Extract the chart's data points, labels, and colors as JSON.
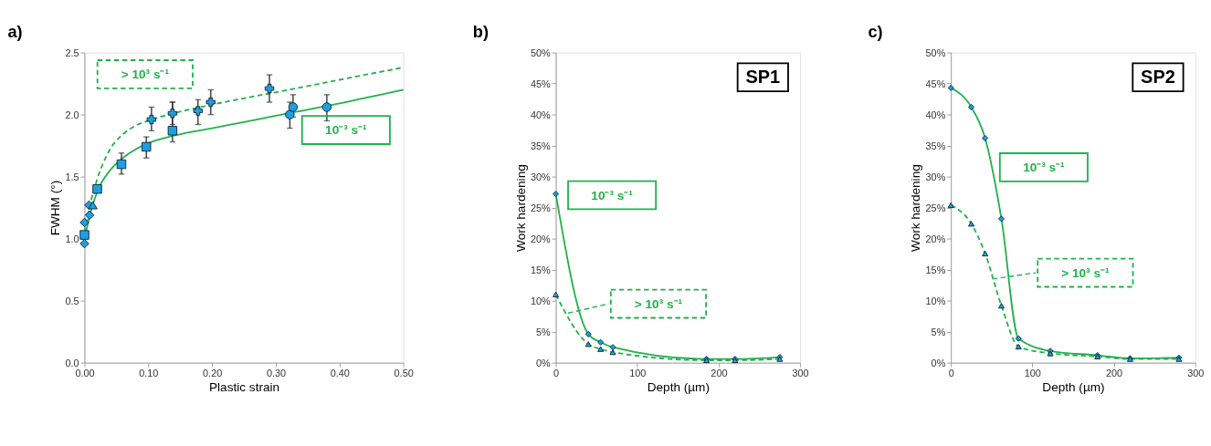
{
  "chart_data": [
    {
      "type": "scatter",
      "title": "a)",
      "xlabel": "Plastic strain",
      "ylabel": "FWHM (°)",
      "xlim": [
        0,
        0.5
      ],
      "ylim": [
        0,
        2.5
      ],
      "xticks": [
        {
          "value": 0,
          "label": "0.00"
        },
        {
          "value": 0.1,
          "label": "0.10"
        },
        {
          "value": 0.2,
          "label": "0.20"
        },
        {
          "value": 0.3,
          "label": "0.30"
        },
        {
          "value": 0.4,
          "label": "0.40"
        },
        {
          "value": 0.5,
          "label": "0.50"
        }
      ],
      "yticks": [
        {
          "value": 0,
          "label": "0.0"
        },
        0.5,
        {
          "value": 1,
          "label": "1.0"
        },
        1.5,
        {
          "value": 2,
          "label": "2.0"
        },
        2.5
      ],
      "grid": false,
      "series": [
        {
          "name": "10⁻³ s⁻¹",
          "type": "line",
          "line_style": "solid",
          "marker": "none",
          "color": "#22b14c",
          "x": [
            0,
            0.01,
            0.02,
            0.04,
            0.06,
            0.08,
            0.1,
            0.14,
            0.2,
            0.3,
            0.4,
            0.5
          ],
          "values": [
            1.0,
            1.22,
            1.38,
            1.55,
            1.65,
            1.72,
            1.77,
            1.83,
            1.89,
            1.99,
            2.09,
            2.2
          ]
        },
        {
          "name": "> 10³ s⁻¹",
          "type": "line",
          "line_style": "dashed",
          "marker": "none",
          "color": "#22b14c",
          "x": [
            0,
            0.01,
            0.02,
            0.04,
            0.06,
            0.08,
            0.1,
            0.14,
            0.2,
            0.3,
            0.4,
            0.5
          ],
          "values": [
            1.05,
            1.3,
            1.48,
            1.72,
            1.84,
            1.91,
            1.95,
            2.01,
            2.08,
            2.18,
            2.28,
            2.38
          ]
        },
        {
          "marker": "square",
          "color": "#1ba1e2",
          "x": [
            0,
            0.02,
            0.058,
            0.097,
            0.138
          ],
          "values": [
            1.03,
            1.4,
            1.6,
            1.74,
            1.87
          ],
          "errors": [
            null,
            null,
            [
              1.52,
              1.69
            ],
            [
              1.65,
              1.82
            ],
            [
              1.78,
              2.1
            ]
          ]
        },
        {
          "marker": "circle",
          "color": "#1ba1e2",
          "x": [
            0.322,
            0.327,
            0.38
          ],
          "values": [
            2.0,
            2.06,
            2.06
          ],
          "errors": [
            [
              1.89,
              2.1
            ],
            [
              1.98,
              2.16
            ],
            [
              1.95,
              2.16
            ]
          ]
        },
        {
          "marker": "diamond",
          "color": "#1ba1e2",
          "x": [
            0,
            0,
            0.008,
            0.007
          ],
          "values": [
            0.96,
            1.13,
            1.19,
            1.27
          ]
        },
        {
          "marker": "triangle",
          "color": "#1ba1e2",
          "x": [
            0.013
          ],
          "values": [
            1.27
          ]
        },
        {
          "marker": "cross",
          "color": "#1ba1e2",
          "x": [
            0.105,
            0.138,
            0.178,
            0.198,
            0.29
          ],
          "values": [
            1.96,
            2.01,
            2.03,
            2.1,
            2.21
          ],
          "errors": [
            [
              1.87,
              2.06
            ],
            [
              1.92,
              2.1
            ],
            [
              1.92,
              2.12
            ],
            [
              2.0,
              2.2
            ],
            [
              2.1,
              2.32
            ]
          ]
        }
      ]
    },
    {
      "type": "line",
      "title": "b)",
      "xlabel": "Depth (µm)",
      "ylabel": "Work hardening",
      "xlim": [
        0,
        300
      ],
      "ylim": [
        0,
        50
      ],
      "xticks": [
        0,
        100,
        200,
        300
      ],
      "yticks": [
        {
          "value": 0,
          "label": "0%"
        },
        {
          "value": 5,
          "label": "5%"
        },
        {
          "value": 10,
          "label": "10%"
        },
        {
          "value": 15,
          "label": "15%"
        },
        {
          "value": 20,
          "label": "20%"
        },
        {
          "value": 25,
          "label": "25%"
        },
        {
          "value": 30,
          "label": "30%"
        },
        {
          "value": 35,
          "label": "35%"
        },
        {
          "value": 40,
          "label": "40%"
        },
        {
          "value": 45,
          "label": "45%"
        },
        {
          "value": 50,
          "label": "50%"
        }
      ],
      "grid": false,
      "annotations": [
        "SP1"
      ],
      "series": [
        {
          "name": "10⁻³ s⁻¹",
          "line_style": "solid",
          "marker": "diamond",
          "color": "#22b14c",
          "x": [
            0,
            40,
            55,
            70,
            185,
            220,
            275
          ],
          "values": [
            27.2,
            4.6,
            3.3,
            2.5,
            0.6,
            0.6,
            0.9
          ]
        },
        {
          "name": "> 10³ s⁻¹",
          "line_style": "dashed",
          "marker": "triangle",
          "color": "#22b14c",
          "x": [
            0,
            40,
            55,
            70,
            185,
            220,
            275
          ],
          "values": [
            11.0,
            3.0,
            2.2,
            1.7,
            0.4,
            0.4,
            0.6
          ]
        }
      ]
    },
    {
      "type": "line",
      "title": "c)",
      "xlabel": "Depth (µm)",
      "ylabel": "Work hardening",
      "xlim": [
        0,
        300
      ],
      "ylim": [
        0,
        50
      ],
      "xticks": [
        0,
        100,
        200,
        300
      ],
      "yticks": [
        {
          "value": 0,
          "label": "0%"
        },
        {
          "value": 5,
          "label": "5%"
        },
        {
          "value": 10,
          "label": "10%"
        },
        {
          "value": 15,
          "label": "15%"
        },
        {
          "value": 20,
          "label": "20%"
        },
        {
          "value": 25,
          "label": "25%"
        },
        {
          "value": 30,
          "label": "30%"
        },
        {
          "value": 35,
          "label": "35%"
        },
        {
          "value": 40,
          "label": "40%"
        },
        {
          "value": 45,
          "label": "45%"
        },
        {
          "value": 50,
          "label": "50%"
        }
      ],
      "grid": false,
      "annotations": [
        "SP2"
      ],
      "series": [
        {
          "name": "10⁻³ s⁻¹",
          "line_style": "solid",
          "marker": "diamond",
          "color": "#22b14c",
          "x": [
            0,
            25,
            42,
            62,
            83,
            122,
            180,
            220,
            280
          ],
          "values": [
            44.3,
            41.2,
            36.2,
            23.2,
            3.9,
            1.9,
            1.2,
            0.7,
            0.8
          ]
        },
        {
          "name": "> 10³ s⁻¹",
          "line_style": "dashed",
          "marker": "triangle",
          "color": "#22b14c",
          "x": [
            0,
            25,
            42,
            62,
            83,
            122,
            180,
            220,
            280
          ],
          "values": [
            25.4,
            22.4,
            17.6,
            9.2,
            2.6,
            1.5,
            1.0,
            0.6,
            0.6
          ]
        }
      ]
    }
  ]
}
